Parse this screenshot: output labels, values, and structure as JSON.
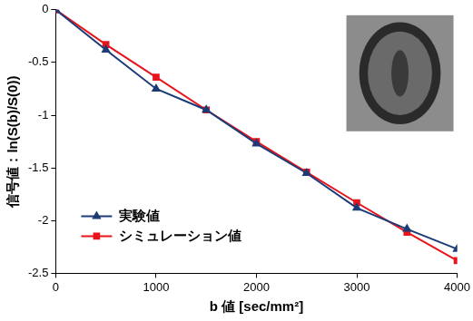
{
  "chart_data": {
    "type": "line",
    "x_label": "b 値 [sec/mm²]",
    "y_label": "信号値：ln(S(b)/S(0))",
    "x": [
      0,
      500,
      1000,
      1500,
      2000,
      2500,
      3000,
      3500,
      4000
    ],
    "series": [
      {
        "name": "実験値",
        "color": "#1c3c78",
        "marker": "triangle",
        "values": [
          0,
          -0.38,
          -0.75,
          -0.95,
          -1.27,
          -1.55,
          -1.88,
          -2.08,
          -2.27
        ]
      },
      {
        "name": "シミュレーション値",
        "color": "#e8141c",
        "marker": "square",
        "values": [
          0,
          -0.33,
          -0.64,
          -0.95,
          -1.25,
          -1.54,
          -1.83,
          -2.11,
          -2.38
        ]
      }
    ],
    "xlim": [
      0,
      4000
    ],
    "xticks": [
      0,
      1000,
      2000,
      3000,
      4000
    ],
    "ylim": [
      -2.5,
      0
    ],
    "yticks": [
      -2.5,
      -2,
      -1.5,
      -1,
      -0.5,
      0
    ],
    "grid": false,
    "legend": "lower left"
  }
}
